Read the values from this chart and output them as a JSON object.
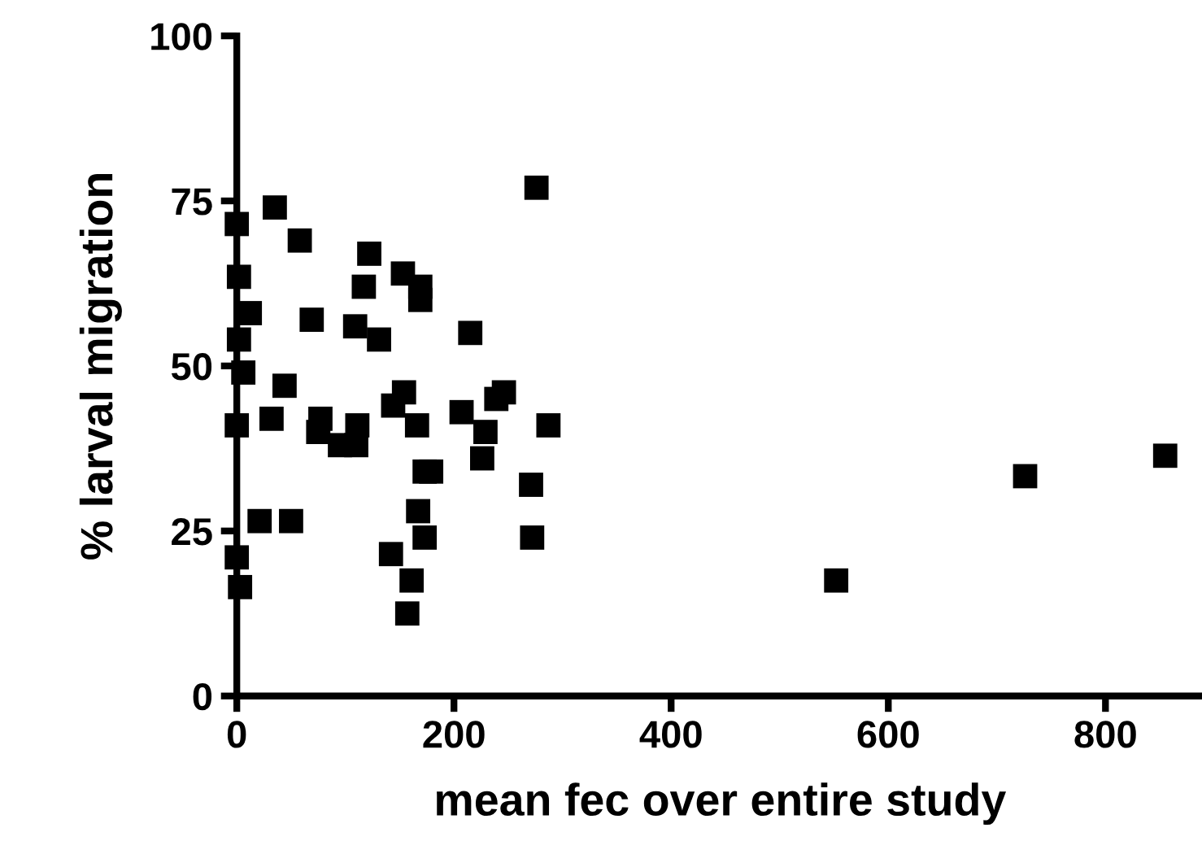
{
  "chart_data": {
    "type": "scatter",
    "xlabel": "mean fec over entire study",
    "ylabel": "% larval migration",
    "x": [
      35,
      0,
      58,
      122,
      2,
      153,
      117,
      169,
      169,
      12,
      69,
      109,
      131,
      215,
      2,
      6,
      44,
      154,
      144,
      246,
      239,
      32,
      77,
      111,
      166,
      207,
      229,
      0,
      75,
      95,
      110,
      226,
      276,
      287,
      271,
      272,
      173,
      179,
      167,
      173,
      21,
      50,
      0,
      3,
      142,
      161,
      157,
      552,
      726,
      855
    ],
    "series": [
      {
        "color": "#000000",
        "values": [
          74,
          71.5,
          69,
          67,
          63.5,
          64,
          62,
          62,
          60,
          58,
          57,
          56,
          54,
          55,
          54,
          49,
          47,
          46,
          44,
          46,
          45,
          42,
          42,
          41,
          41,
          43,
          40,
          41,
          40,
          38,
          38,
          36,
          77,
          41,
          32,
          24,
          34,
          34,
          28,
          24,
          26.5,
          26.5,
          21,
          16.5,
          21.5,
          17.5,
          12.5,
          17.5,
          33.3,
          36.4
        ]
      }
    ],
    "marker": "square",
    "xlim": [
      0,
      890
    ],
    "ylim": [
      0,
      100
    ],
    "xticks": [
      0,
      200,
      400,
      600,
      800
    ],
    "yticks": [
      0,
      25,
      50,
      75,
      100
    ],
    "grid": false,
    "legend": false
  }
}
